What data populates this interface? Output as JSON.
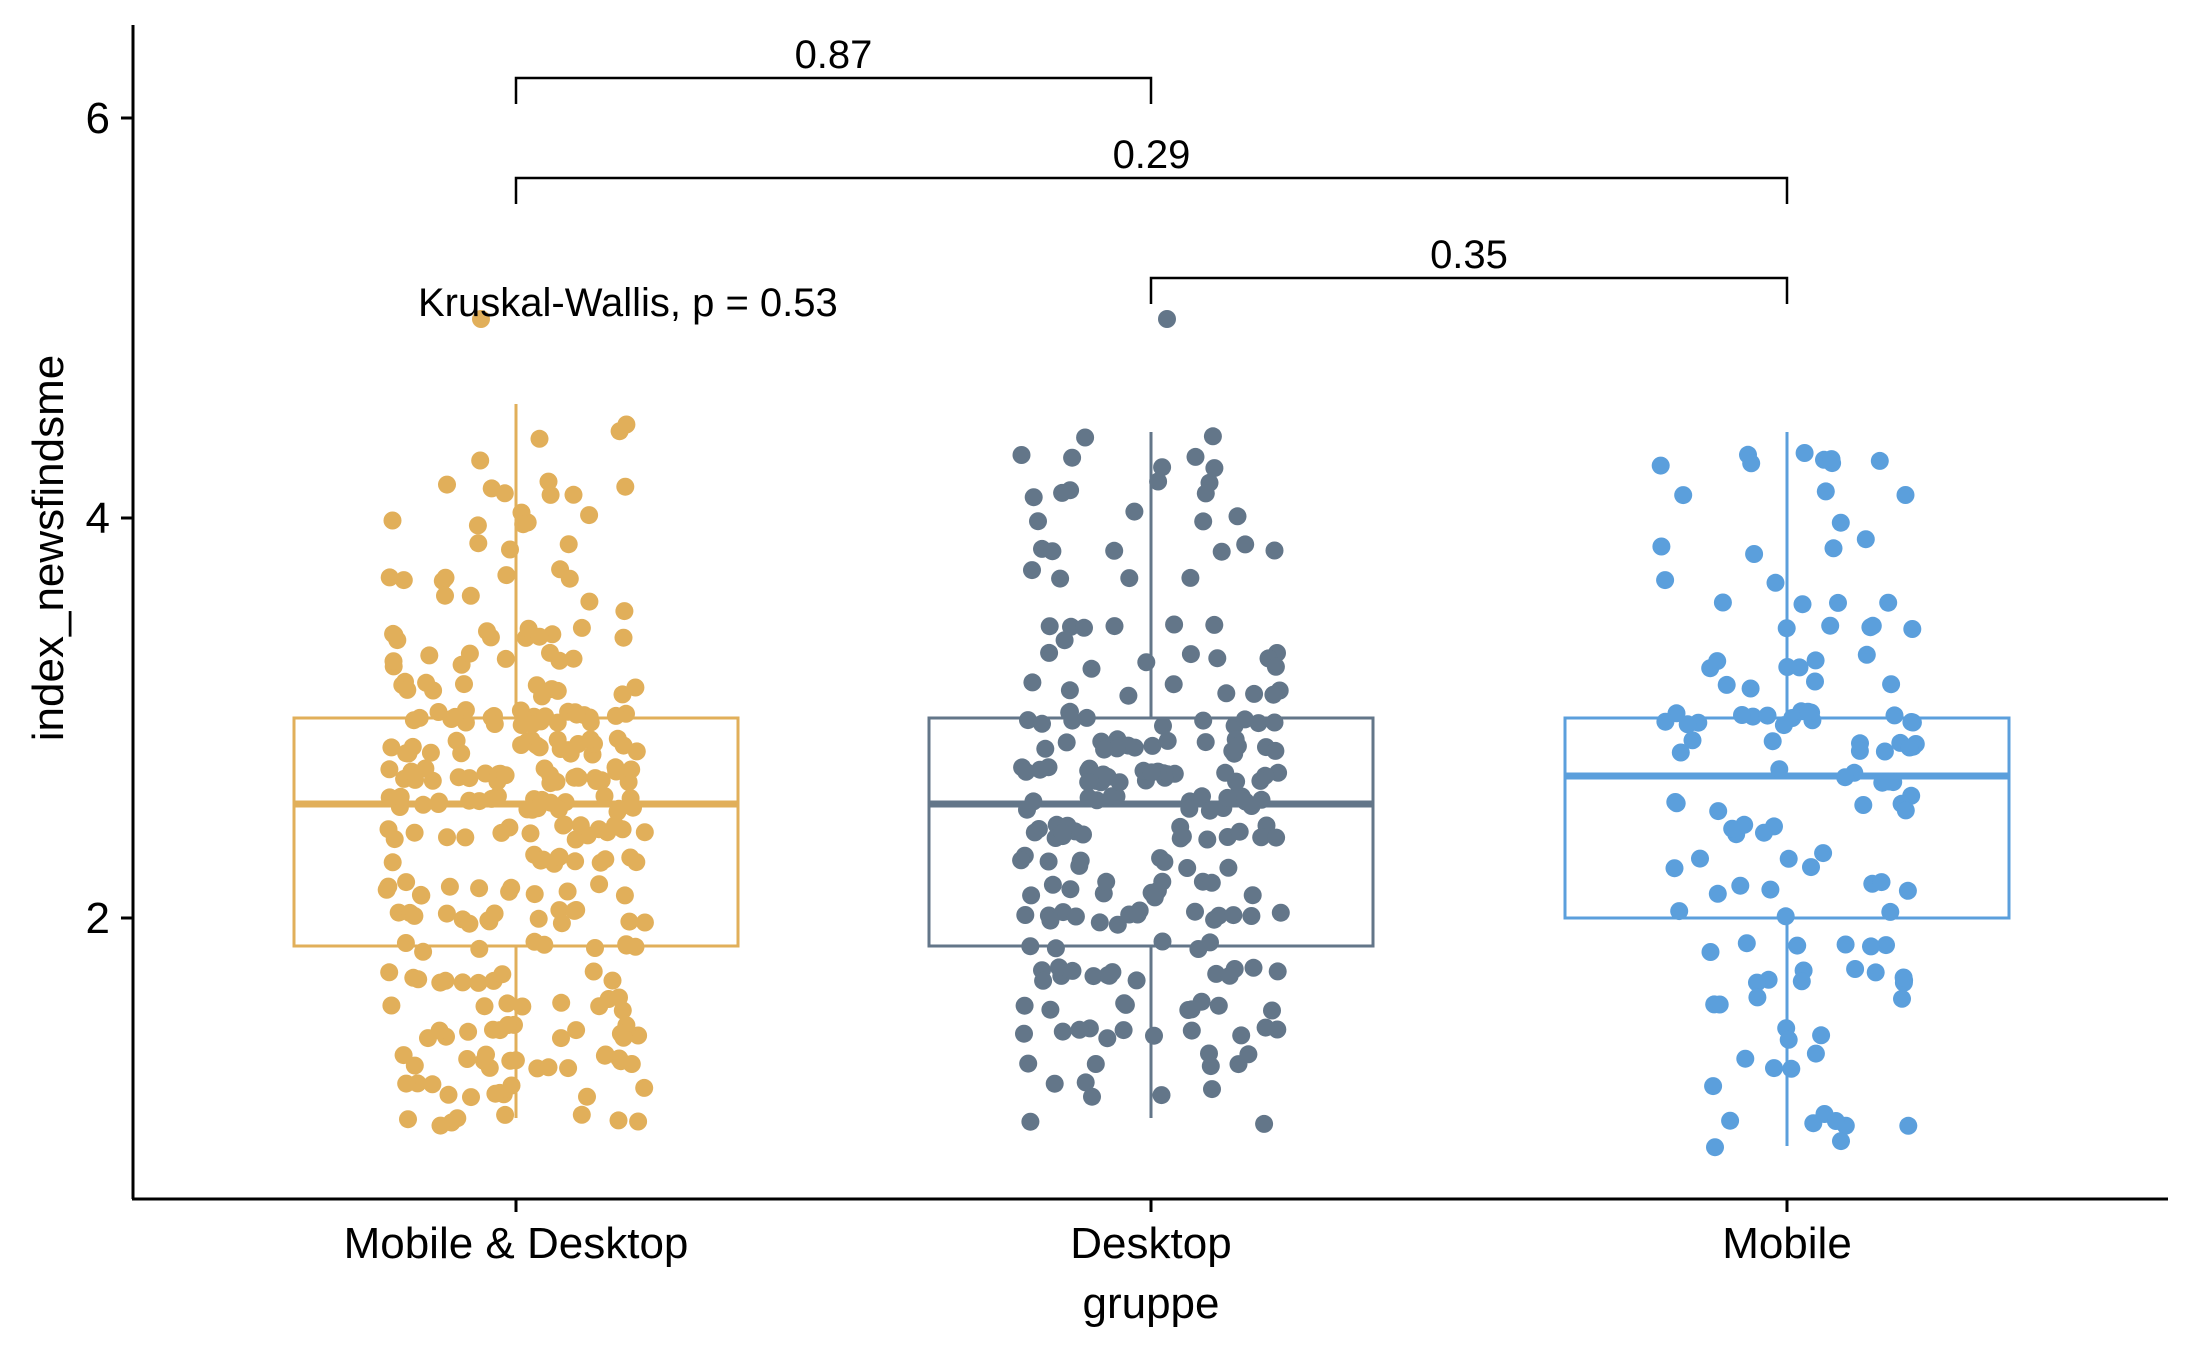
{
  "chart_data": {
    "type": "box",
    "xlabel": "gruppe",
    "ylabel": "index_newsfindsme",
    "ylim": [
      0.6,
      6.6
    ],
    "y_ticks": [
      2,
      4,
      6
    ],
    "categories": [
      "Mobile & Desktop",
      "Desktop",
      "Mobile"
    ],
    "colors": [
      "#E1AF5A",
      "#637689",
      "#5B9FDC"
    ],
    "boxes": [
      {
        "name": "Mobile & Desktop",
        "min": 1.0,
        "q1": 1.86,
        "median": 2.57,
        "q3": 3.0,
        "max": 4.57
      },
      {
        "name": "Desktop",
        "min": 1.0,
        "q1": 1.86,
        "median": 2.57,
        "q3": 3.0,
        "max": 4.43
      },
      {
        "name": "Mobile",
        "min": 0.86,
        "q1": 2.0,
        "median": 2.71,
        "q3": 3.0,
        "max": 4.43
      }
    ],
    "outliers": [
      {
        "group": "Mobile & Desktop",
        "y": 5.0
      },
      {
        "group": "Desktop",
        "y": 5.0
      }
    ],
    "test_label": "Kruskal-Wallis, p = 0.53",
    "comparisons": [
      {
        "from": "Mobile & Desktop",
        "to": "Desktop",
        "p_label": "0.87",
        "y": 6.2
      },
      {
        "from": "Mobile & Desktop",
        "to": "Mobile",
        "p_label": "0.29",
        "y": 5.7
      },
      {
        "from": "Desktop",
        "to": "Mobile",
        "p_label": "0.35",
        "y": 5.2
      }
    ],
    "jitter_points_per_group": [
      300,
      230,
      130
    ],
    "legend": "none",
    "grid": false
  }
}
